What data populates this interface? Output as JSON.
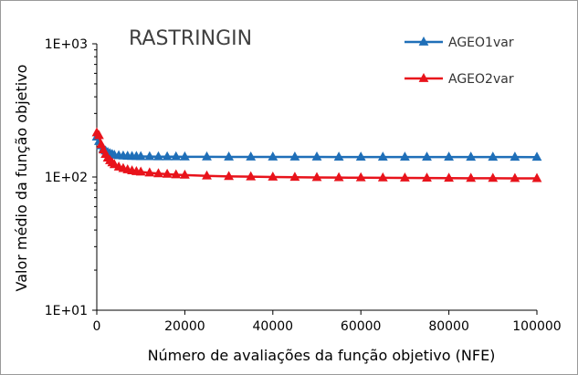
{
  "chart_data": {
    "type": "line",
    "title": "RASTRINGIN",
    "xlabel": "Número de avaliações da função objetivo (NFE)",
    "ylabel": "Valor médio da função objetivo",
    "y_scale": "log",
    "xlim": [
      0,
      100000
    ],
    "ylim": [
      10,
      1000
    ],
    "x_ticks": [
      0,
      20000,
      40000,
      60000,
      80000,
      100000
    ],
    "x_tick_labels": [
      "0",
      "20000",
      "40000",
      "60000",
      "80000",
      "100000"
    ],
    "y_ticks": [
      10,
      100,
      1000
    ],
    "y_tick_labels": [
      "1E+01",
      "1E+02",
      "1E+03"
    ],
    "grid": false,
    "legend_position": "top-right",
    "series": [
      {
        "name": "AGEO1var",
        "color": "#1f6fb8",
        "x": [
          0,
          500,
          1000,
          1500,
          2000,
          2500,
          3000,
          3500,
          4000,
          5000,
          6000,
          7000,
          8000,
          9000,
          10000,
          12000,
          14000,
          16000,
          18000,
          20000,
          25000,
          30000,
          35000,
          40000,
          45000,
          50000,
          55000,
          60000,
          65000,
          70000,
          75000,
          80000,
          85000,
          90000,
          95000,
          100000
        ],
        "y": [
          200,
          185,
          172,
          163,
          157,
          153,
          150,
          148,
          146,
          145,
          144,
          143.5,
          143,
          142.8,
          142.5,
          142.3,
          142.1,
          142,
          142,
          141.8,
          141.7,
          141.6,
          141.5,
          141.5,
          141.4,
          141.4,
          141.3,
          141.3,
          141.3,
          141.2,
          141.2,
          141.2,
          141.1,
          141.1,
          141.1,
          141
        ]
      },
      {
        "name": "AGEO2var",
        "color": "#e8131b",
        "x": [
          0,
          500,
          1000,
          1500,
          2000,
          2500,
          3000,
          3500,
          4000,
          5000,
          6000,
          7000,
          8000,
          9000,
          10000,
          12000,
          14000,
          16000,
          18000,
          20000,
          25000,
          30000,
          35000,
          40000,
          45000,
          50000,
          55000,
          60000,
          65000,
          70000,
          75000,
          80000,
          85000,
          90000,
          95000,
          100000
        ],
        "y": [
          215,
          205,
          175,
          160,
          148,
          139,
          133,
          128,
          124,
          119,
          116,
          113.5,
          111.5,
          110,
          109,
          107.5,
          106,
          105,
          104,
          103.5,
          102,
          101,
          100.5,
          100,
          99.6,
          99.3,
          99,
          98.8,
          98.6,
          98.4,
          98.2,
          98,
          97.9,
          97.8,
          97.7,
          97.6
        ]
      }
    ]
  }
}
